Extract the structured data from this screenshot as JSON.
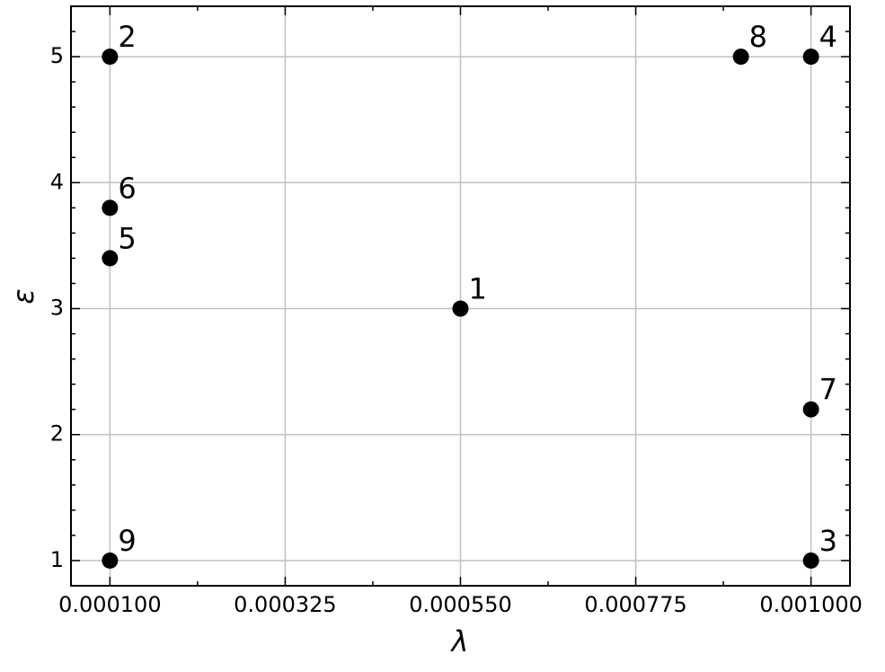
{
  "chart_data": {
    "type": "scatter",
    "x_label": "λ",
    "y_label": "ε",
    "x": [
      0.00055,
      0.0001,
      0.001,
      0.001,
      0.0001,
      0.0001,
      0.001,
      0.00091,
      0.0001
    ],
    "values": [
      3,
      5,
      1,
      5,
      3.4,
      3.8,
      2.2,
      5,
      1
    ],
    "labels": [
      "1",
      "2",
      "3",
      "4",
      "5",
      "6",
      "7",
      "8",
      "9"
    ],
    "color": "#000000",
    "xlim": [
      5e-05,
      0.00105
    ],
    "ylim": [
      0.8,
      5.4
    ],
    "xticks": [
      {
        "value": 0.0001,
        "label": "0.000100"
      },
      {
        "value": 0.000325,
        "label": "0.000325"
      },
      {
        "value": 0.00055,
        "label": "0.000550"
      },
      {
        "value": 0.000775,
        "label": "0.000775"
      },
      {
        "value": 0.001,
        "label": "0.001000"
      }
    ],
    "yticks": [
      1,
      2,
      3,
      4,
      5
    ],
    "xminorticks": [
      0.0002125,
      0.0004375,
      0.0006625,
      0.0008875
    ],
    "yminorticks": [
      0.8,
      1.2,
      1.4,
      1.6,
      1.8,
      2.2,
      2.4,
      2.6,
      2.8,
      3.2,
      3.4,
      3.6,
      3.8,
      4.2,
      4.4,
      4.6,
      4.8,
      5.2,
      5.4
    ],
    "grid": true
  }
}
